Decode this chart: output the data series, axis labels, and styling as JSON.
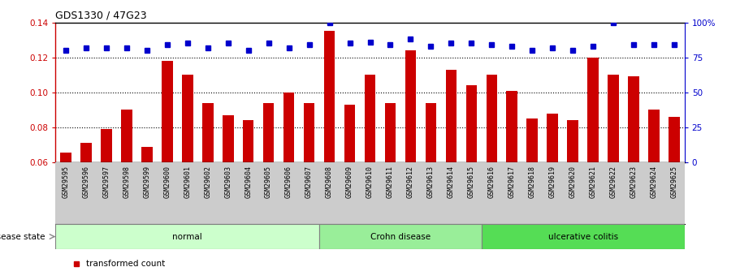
{
  "title": "GDS1330 / 47G23",
  "categories": [
    "GSM29595",
    "GSM29596",
    "GSM29597",
    "GSM29598",
    "GSM29599",
    "GSM29600",
    "GSM29601",
    "GSM29602",
    "GSM29603",
    "GSM29604",
    "GSM29605",
    "GSM29606",
    "GSM29607",
    "GSM29608",
    "GSM29609",
    "GSM29610",
    "GSM29611",
    "GSM29612",
    "GSM29613",
    "GSM29614",
    "GSM29615",
    "GSM29616",
    "GSM29617",
    "GSM29618",
    "GSM29619",
    "GSM29620",
    "GSM29621",
    "GSM29622",
    "GSM29623",
    "GSM29624",
    "GSM29625"
  ],
  "bar_values": [
    0.0655,
    0.071,
    0.079,
    0.09,
    0.069,
    0.118,
    0.11,
    0.094,
    0.087,
    0.084,
    0.094,
    0.1,
    0.094,
    0.135,
    0.093,
    0.11,
    0.094,
    0.124,
    0.094,
    0.113,
    0.104,
    0.11,
    0.101,
    0.085,
    0.088,
    0.084,
    0.12,
    0.11,
    0.109,
    0.09,
    0.086
  ],
  "percentile_values": [
    80,
    82,
    82,
    82,
    80,
    84,
    85,
    82,
    85,
    80,
    85,
    82,
    84,
    100,
    85,
    86,
    84,
    88,
    83,
    85,
    85,
    84,
    83,
    80,
    82,
    80,
    83,
    100,
    84,
    84,
    84
  ],
  "groups": [
    {
      "label": "normal",
      "start": 0,
      "end": 12,
      "color": "#ccffcc"
    },
    {
      "label": "Crohn disease",
      "start": 13,
      "end": 20,
      "color": "#99ee99"
    },
    {
      "label": "ulcerative colitis",
      "start": 21,
      "end": 30,
      "color": "#55dd55"
    }
  ],
  "bar_color": "#cc0000",
  "dot_color": "#0000cc",
  "ylim_left": [
    0.06,
    0.14
  ],
  "ylim_right": [
    0,
    100
  ],
  "yticks_left": [
    0.06,
    0.08,
    0.1,
    0.12,
    0.14
  ],
  "yticks_right": [
    0,
    25,
    50,
    75,
    100
  ],
  "background_color": "#ffffff"
}
